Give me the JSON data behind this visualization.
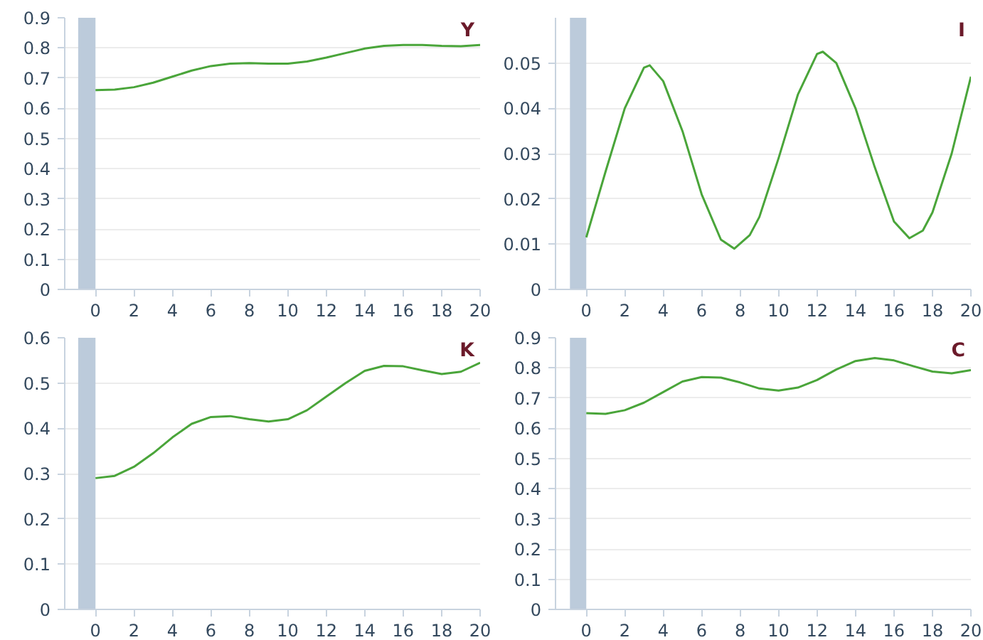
{
  "chart_data": [
    {
      "type": "line",
      "title": "Y",
      "x": [
        0,
        1,
        2,
        3,
        4,
        5,
        6,
        7,
        8,
        9,
        10,
        11,
        12,
        13,
        14,
        15,
        16,
        17,
        18,
        19,
        20
      ],
      "xlim": [
        -1.6,
        20
      ],
      "xticks": [
        0,
        2,
        4,
        6,
        8,
        10,
        12,
        14,
        16,
        18,
        20
      ],
      "ylim": [
        0,
        0.9
      ],
      "yticks": [
        0,
        0.1,
        0.2,
        0.3,
        0.4,
        0.5,
        0.6,
        0.7,
        0.8,
        0.9
      ],
      "grid": "y",
      "bands": [
        {
          "axis": "x",
          "from": -0.9,
          "to": 0,
          "color": "#bccbdb"
        }
      ],
      "series": [
        {
          "color": "#4aa53a",
          "values": [
            0.66,
            0.662,
            0.67,
            0.685,
            0.705,
            0.725,
            0.74,
            0.748,
            0.75,
            0.748,
            0.748,
            0.755,
            0.768,
            0.783,
            0.798,
            0.807,
            0.81,
            0.81,
            0.807,
            0.806,
            0.81
          ]
        }
      ]
    },
    {
      "type": "line",
      "title": "I",
      "x": [
        0,
        1,
        2,
        3,
        3.3,
        4,
        5,
        6,
        7,
        7.7,
        8.5,
        9,
        10,
        11,
        12,
        12.3,
        13,
        14,
        15,
        16,
        16.8,
        17.5,
        18,
        19,
        20
      ],
      "xlim": [
        -1.6,
        20
      ],
      "xticks": [
        0,
        2,
        4,
        6,
        8,
        10,
        12,
        14,
        16,
        18,
        20
      ],
      "ylim": [
        0,
        0.06
      ],
      "yticks": [
        0,
        0.01,
        0.02,
        0.03,
        0.04,
        0.05
      ],
      "grid": "y",
      "bands": [
        {
          "axis": "x",
          "from": -0.85,
          "to": 0,
          "color": "#bccbdb"
        }
      ],
      "series": [
        {
          "color": "#4aa53a",
          "values": [
            0.0115,
            0.026,
            0.04,
            0.049,
            0.0495,
            0.046,
            0.035,
            0.021,
            0.011,
            0.009,
            0.012,
            0.016,
            0.029,
            0.043,
            0.052,
            0.0525,
            0.05,
            0.04,
            0.027,
            0.015,
            0.0113,
            0.013,
            0.017,
            0.03,
            0.047
          ]
        }
      ]
    },
    {
      "type": "line",
      "title": "K",
      "x": [
        0,
        1,
        2,
        3,
        4,
        5,
        6,
        7,
        8,
        9,
        10,
        11,
        12,
        13,
        14,
        15,
        16,
        17,
        18,
        19,
        20
      ],
      "xlim": [
        -1.6,
        20
      ],
      "xticks": [
        0,
        2,
        4,
        6,
        8,
        10,
        12,
        14,
        16,
        18,
        20
      ],
      "ylim": [
        0,
        0.6
      ],
      "yticks": [
        0,
        0.1,
        0.2,
        0.3,
        0.4,
        0.5,
        0.6
      ],
      "grid": "y",
      "bands": [
        {
          "axis": "x",
          "from": -0.9,
          "to": 0,
          "color": "#bccbdb"
        }
      ],
      "series": [
        {
          "color": "#4aa53a",
          "values": [
            0.29,
            0.295,
            0.315,
            0.345,
            0.38,
            0.41,
            0.425,
            0.427,
            0.42,
            0.415,
            0.42,
            0.44,
            0.47,
            0.5,
            0.527,
            0.538,
            0.537,
            0.528,
            0.52,
            0.525,
            0.545
          ]
        }
      ]
    },
    {
      "type": "line",
      "title": "C",
      "x": [
        0,
        1,
        2,
        3,
        4,
        5,
        6,
        7,
        8,
        9,
        10,
        11,
        12,
        13,
        14,
        15,
        16,
        17,
        18,
        19,
        20
      ],
      "xlim": [
        -1.6,
        20
      ],
      "xticks": [
        0,
        2,
        4,
        6,
        8,
        10,
        12,
        14,
        16,
        18,
        20
      ],
      "ylim": [
        0,
        0.9
      ],
      "yticks": [
        0,
        0.1,
        0.2,
        0.3,
        0.4,
        0.5,
        0.6,
        0.7,
        0.8,
        0.9
      ],
      "grid": "y",
      "bands": [
        {
          "axis": "x",
          "from": -0.85,
          "to": 0,
          "color": "#bccbdb"
        }
      ],
      "series": [
        {
          "color": "#4aa53a",
          "values": [
            0.65,
            0.648,
            0.66,
            0.685,
            0.72,
            0.755,
            0.77,
            0.768,
            0.752,
            0.732,
            0.725,
            0.735,
            0.76,
            0.795,
            0.823,
            0.833,
            0.825,
            0.806,
            0.788,
            0.782,
            0.793
          ]
        }
      ]
    }
  ]
}
